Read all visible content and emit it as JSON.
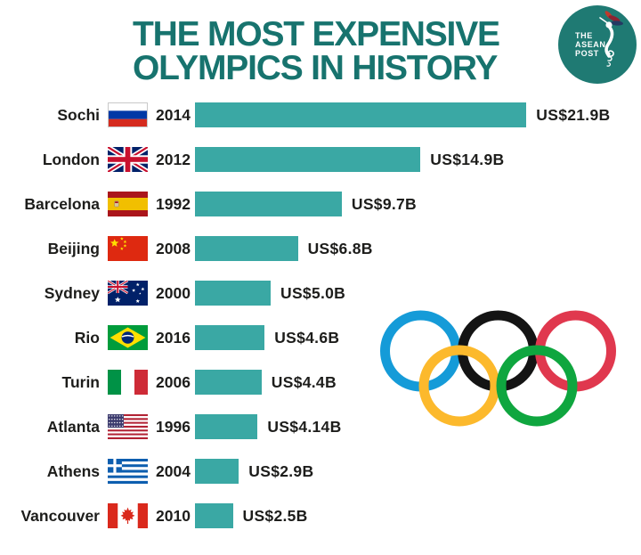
{
  "title": {
    "line1": "THE MOST EXPENSIVE",
    "line2": "OLYMPICS IN HISTORY"
  },
  "logo": {
    "line1": "THE",
    "line2": "ASEAN",
    "line3": "POST"
  },
  "colors": {
    "bar": "#3AA8A4",
    "title": "#17736E",
    "logo_bg": "#1F7A73",
    "text": "#1D1D1B"
  },
  "rings": {
    "blue": "#159BD8",
    "black": "#141414",
    "red": "#E0384E",
    "yellow": "#FCB92C",
    "green": "#0FA63F"
  },
  "chart_data": {
    "type": "bar",
    "orientation": "horizontal",
    "title": "The Most Expensive Olympics in History",
    "value_unit": "US$ billions",
    "xlim": [
      0,
      21.9
    ],
    "grid": false,
    "bar_color": "#3AA8A4",
    "rows": [
      {
        "city": "Sochi",
        "flag": "russia",
        "year": "2014",
        "value": 21.9,
        "label": "US$21.9B"
      },
      {
        "city": "London",
        "flag": "uk",
        "year": "2012",
        "value": 14.9,
        "label": "US$14.9B"
      },
      {
        "city": "Barcelona",
        "flag": "spain",
        "year": "1992",
        "value": 9.7,
        "label": "US$9.7B"
      },
      {
        "city": "Beijing",
        "flag": "china",
        "year": "2008",
        "value": 6.8,
        "label": "US$6.8B"
      },
      {
        "city": "Sydney",
        "flag": "australia",
        "year": "2000",
        "value": 5.0,
        "label": "US$5.0B"
      },
      {
        "city": "Rio",
        "flag": "brazil",
        "year": "2016",
        "value": 4.6,
        "label": "US$4.6B"
      },
      {
        "city": "Turin",
        "flag": "italy",
        "year": "2006",
        "value": 4.4,
        "label": "US$4.4B"
      },
      {
        "city": "Atlanta",
        "flag": "usa",
        "year": "1996",
        "value": 4.14,
        "label": "US$4.14B"
      },
      {
        "city": "Athens",
        "flag": "greece",
        "year": "2004",
        "value": 2.9,
        "label": "US$2.9B"
      },
      {
        "city": "Vancouver",
        "flag": "canada",
        "year": "2010",
        "value": 2.5,
        "label": "US$2.5B"
      }
    ]
  }
}
